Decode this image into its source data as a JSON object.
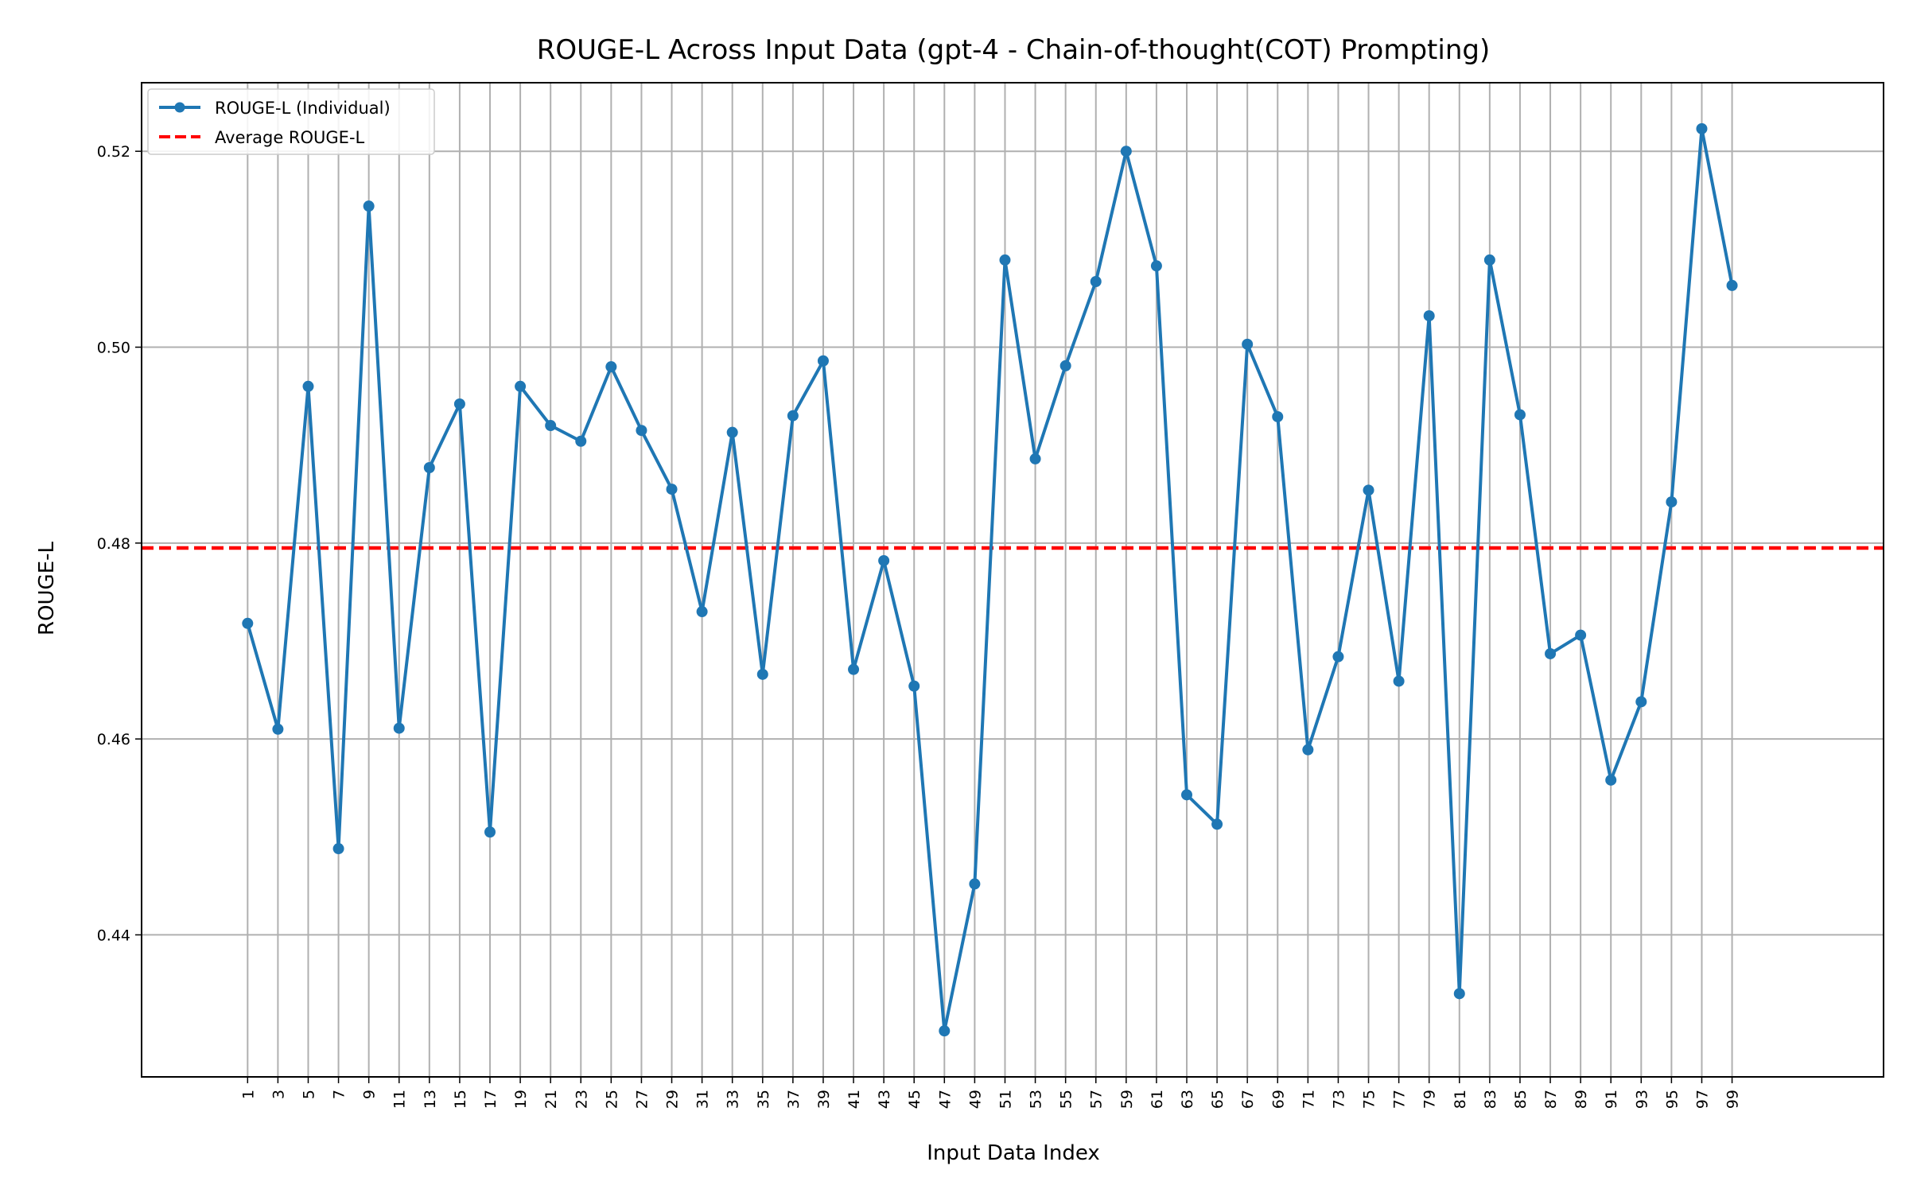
{
  "chart_data": {
    "type": "line",
    "title": "ROUGE-L Across Input Data (gpt-4 - Chain-of-thought(COT) Prompting)",
    "xlabel": "Input Data Index",
    "ylabel": "ROUGE-L",
    "x": [
      1,
      3,
      5,
      7,
      9,
      11,
      13,
      15,
      17,
      19,
      21,
      23,
      25,
      27,
      29,
      31,
      33,
      35,
      37,
      39,
      41,
      43,
      45,
      47,
      49,
      51,
      53,
      55,
      57,
      59,
      61,
      63,
      65,
      67,
      69,
      71,
      73,
      75,
      77,
      79,
      81,
      83,
      85,
      87,
      89,
      91,
      93,
      95,
      97,
      99
    ],
    "xticks": [
      "1",
      "3",
      "5",
      "7",
      "9",
      "11",
      "13",
      "15",
      "17",
      "19",
      "21",
      "23",
      "25",
      "27",
      "29",
      "31",
      "33",
      "35",
      "37",
      "39",
      "41",
      "43",
      "45",
      "47",
      "49",
      "51",
      "53",
      "55",
      "57",
      "59",
      "61",
      "63",
      "65",
      "67",
      "69",
      "71",
      "73",
      "75",
      "77",
      "79",
      "81",
      "83",
      "85",
      "87",
      "89",
      "91",
      "93",
      "95",
      "97",
      "99"
    ],
    "yticks": [
      "0.44",
      "0.46",
      "0.48",
      "0.50",
      "0.52"
    ],
    "xlim": [
      -6.0,
      109.0
    ],
    "ylim": [
      0.4255,
      0.527
    ],
    "grid": true,
    "legend_position": "top-left",
    "series": [
      {
        "name": "ROUGE-L (Individual)",
        "color": "#1f77b4",
        "style": "solid",
        "marker": "circle",
        "values": [
          0.4718,
          0.461,
          0.496,
          0.4488,
          0.5144,
          0.4611,
          0.4877,
          0.4942,
          0.4505,
          0.496,
          0.492,
          0.4904,
          0.498,
          0.4915,
          0.4855,
          0.473,
          0.4913,
          0.4666,
          0.493,
          0.4986,
          0.4671,
          0.4782,
          0.4654,
          0.4302,
          0.4452,
          0.5089,
          0.4886,
          0.4981,
          0.5067,
          0.52,
          0.5083,
          0.4543,
          0.4513,
          0.5003,
          0.4929,
          0.4589,
          0.4684,
          0.4854,
          0.4659,
          0.5032,
          0.434,
          0.5089,
          0.4931,
          0.4687,
          0.4706,
          0.4558,
          0.4638,
          0.4842,
          0.5223,
          0.5063
        ]
      },
      {
        "name": "Average ROUGE-L",
        "color": "#ff0000",
        "style": "dashed",
        "value": 0.4795
      }
    ]
  }
}
